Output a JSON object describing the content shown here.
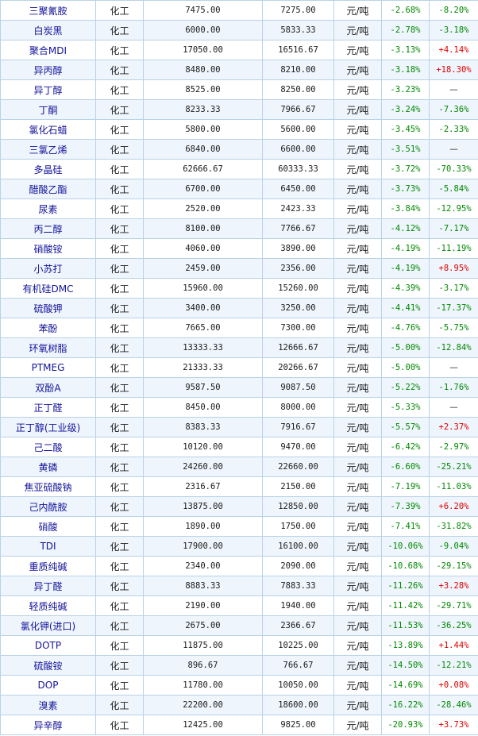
{
  "table": {
    "rows": [
      {
        "name": "三聚氰胺",
        "sector": "化工",
        "price_now": "7475.00",
        "price_prev": "7275.00",
        "unit": "元/吨",
        "change": "-2.68%",
        "change2": "-8.20%"
      },
      {
        "name": "白炭黑",
        "sector": "化工",
        "price_now": "6000.00",
        "price_prev": "5833.33",
        "unit": "元/吨",
        "change": "-2.78%",
        "change2": "-3.18%"
      },
      {
        "name": "聚合MDI",
        "sector": "化工",
        "price_now": "17050.00",
        "price_prev": "16516.67",
        "unit": "元/吨",
        "change": "-3.13%",
        "change2": "+4.14%"
      },
      {
        "name": "异丙醇",
        "sector": "化工",
        "price_now": "8480.00",
        "price_prev": "8210.00",
        "unit": "元/吨",
        "change": "-3.18%",
        "change2": "+18.30%"
      },
      {
        "name": "异丁醇",
        "sector": "化工",
        "price_now": "8525.00",
        "price_prev": "8250.00",
        "unit": "元/吨",
        "change": "-3.23%",
        "change2": "—"
      },
      {
        "name": "丁酮",
        "sector": "化工",
        "price_now": "8233.33",
        "price_prev": "7966.67",
        "unit": "元/吨",
        "change": "-3.24%",
        "change2": "-7.36%"
      },
      {
        "name": "氯化石蜡",
        "sector": "化工",
        "price_now": "5800.00",
        "price_prev": "5600.00",
        "unit": "元/吨",
        "change": "-3.45%",
        "change2": "-2.33%"
      },
      {
        "name": "三氯乙烯",
        "sector": "化工",
        "price_now": "6840.00",
        "price_prev": "6600.00",
        "unit": "元/吨",
        "change": "-3.51%",
        "change2": "—"
      },
      {
        "name": "多晶硅",
        "sector": "化工",
        "price_now": "62666.67",
        "price_prev": "60333.33",
        "unit": "元/吨",
        "change": "-3.72%",
        "change2": "-70.33%"
      },
      {
        "name": "醋酸乙酯",
        "sector": "化工",
        "price_now": "6700.00",
        "price_prev": "6450.00",
        "unit": "元/吨",
        "change": "-3.73%",
        "change2": "-5.84%"
      },
      {
        "name": "尿素",
        "sector": "化工",
        "price_now": "2520.00",
        "price_prev": "2423.33",
        "unit": "元/吨",
        "change": "-3.84%",
        "change2": "-12.95%"
      },
      {
        "name": "丙二醇",
        "sector": "化工",
        "price_now": "8100.00",
        "price_prev": "7766.67",
        "unit": "元/吨",
        "change": "-4.12%",
        "change2": "-7.17%"
      },
      {
        "name": "硝酸铵",
        "sector": "化工",
        "price_now": "4060.00",
        "price_prev": "3890.00",
        "unit": "元/吨",
        "change": "-4.19%",
        "change2": "-11.19%"
      },
      {
        "name": "小苏打",
        "sector": "化工",
        "price_now": "2459.00",
        "price_prev": "2356.00",
        "unit": "元/吨",
        "change": "-4.19%",
        "change2": "+8.95%"
      },
      {
        "name": "有机硅DMC",
        "sector": "化工",
        "price_now": "15960.00",
        "price_prev": "15260.00",
        "unit": "元/吨",
        "change": "-4.39%",
        "change2": "-3.17%"
      },
      {
        "name": "硫酸钾",
        "sector": "化工",
        "price_now": "3400.00",
        "price_prev": "3250.00",
        "unit": "元/吨",
        "change": "-4.41%",
        "change2": "-17.37%"
      },
      {
        "name": "苯酚",
        "sector": "化工",
        "price_now": "7665.00",
        "price_prev": "7300.00",
        "unit": "元/吨",
        "change": "-4.76%",
        "change2": "-5.75%"
      },
      {
        "name": "环氧树脂",
        "sector": "化工",
        "price_now": "13333.33",
        "price_prev": "12666.67",
        "unit": "元/吨",
        "change": "-5.00%",
        "change2": "-12.84%"
      },
      {
        "name": "PTMEG",
        "sector": "化工",
        "price_now": "21333.33",
        "price_prev": "20266.67",
        "unit": "元/吨",
        "change": "-5.00%",
        "change2": "—"
      },
      {
        "name": "双酚A",
        "sector": "化工",
        "price_now": "9587.50",
        "price_prev": "9087.50",
        "unit": "元/吨",
        "change": "-5.22%",
        "change2": "-1.76%"
      },
      {
        "name": "正丁醛",
        "sector": "化工",
        "price_now": "8450.00",
        "price_prev": "8000.00",
        "unit": "元/吨",
        "change": "-5.33%",
        "change2": "—"
      },
      {
        "name": "正丁醇(工业级)",
        "sector": "化工",
        "price_now": "8383.33",
        "price_prev": "7916.67",
        "unit": "元/吨",
        "change": "-5.57%",
        "change2": "+2.37%"
      },
      {
        "name": "己二酸",
        "sector": "化工",
        "price_now": "10120.00",
        "price_prev": "9470.00",
        "unit": "元/吨",
        "change": "-6.42%",
        "change2": "-2.97%"
      },
      {
        "name": "黄磷",
        "sector": "化工",
        "price_now": "24260.00",
        "price_prev": "22660.00",
        "unit": "元/吨",
        "change": "-6.60%",
        "change2": "-25.21%"
      },
      {
        "name": "焦亚硫酸钠",
        "sector": "化工",
        "price_now": "2316.67",
        "price_prev": "2150.00",
        "unit": "元/吨",
        "change": "-7.19%",
        "change2": "-11.03%"
      },
      {
        "name": "己内酰胺",
        "sector": "化工",
        "price_now": "13875.00",
        "price_prev": "12850.00",
        "unit": "元/吨",
        "change": "-7.39%",
        "change2": "+6.20%"
      },
      {
        "name": "硝酸",
        "sector": "化工",
        "price_now": "1890.00",
        "price_prev": "1750.00",
        "unit": "元/吨",
        "change": "-7.41%",
        "change2": "-31.82%"
      },
      {
        "name": "TDI",
        "sector": "化工",
        "price_now": "17900.00",
        "price_prev": "16100.00",
        "unit": "元/吨",
        "change": "-10.06%",
        "change2": "-9.04%"
      },
      {
        "name": "重质纯碱",
        "sector": "化工",
        "price_now": "2340.00",
        "price_prev": "2090.00",
        "unit": "元/吨",
        "change": "-10.68%",
        "change2": "-29.15%"
      },
      {
        "name": "异丁醛",
        "sector": "化工",
        "price_now": "8883.33",
        "price_prev": "7883.33",
        "unit": "元/吨",
        "change": "-11.26%",
        "change2": "+3.28%"
      },
      {
        "name": "轻质纯碱",
        "sector": "化工",
        "price_now": "2190.00",
        "price_prev": "1940.00",
        "unit": "元/吨",
        "change": "-11.42%",
        "change2": "-29.71%"
      },
      {
        "name": "氯化钾(进口)",
        "sector": "化工",
        "price_now": "2675.00",
        "price_prev": "2366.67",
        "unit": "元/吨",
        "change": "-11.53%",
        "change2": "-36.25%"
      },
      {
        "name": "DOTP",
        "sector": "化工",
        "price_now": "11875.00",
        "price_prev": "10225.00",
        "unit": "元/吨",
        "change": "-13.89%",
        "change2": "+1.44%"
      },
      {
        "name": "硫酸铵",
        "sector": "化工",
        "price_now": "896.67",
        "price_prev": "766.67",
        "unit": "元/吨",
        "change": "-14.50%",
        "change2": "-12.21%"
      },
      {
        "name": "DOP",
        "sector": "化工",
        "price_now": "11780.00",
        "price_prev": "10050.00",
        "unit": "元/吨",
        "change": "-14.69%",
        "change2": "+0.08%"
      },
      {
        "name": "溴素",
        "sector": "化工",
        "price_now": "22200.00",
        "price_prev": "18600.00",
        "unit": "元/吨",
        "change": "-16.22%",
        "change2": "-28.46%"
      },
      {
        "name": "异辛醇",
        "sector": "化工",
        "price_now": "12425.00",
        "price_prev": "9825.00",
        "unit": "元/吨",
        "change": "-20.93%",
        "change2": "+3.73%"
      }
    ]
  },
  "colors": {
    "negative": "#008800",
    "positive": "#e00000",
    "name_text": "#13139a",
    "border": "#b9d2e8",
    "stripe": "#eef5fc"
  }
}
